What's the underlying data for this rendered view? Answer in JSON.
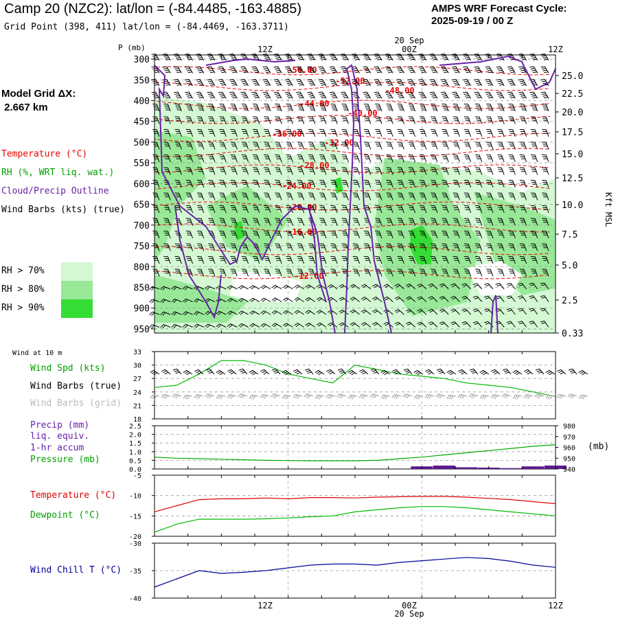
{
  "header": {
    "title": "Camp 20 (NZC2):  lat/lon = (-84.4485, -163.4885)",
    "subtitle": "Grid Point (398, 411) lat/lon = (-84.4469, -163.3711)",
    "forecast_line1": "AMPS WRF Forecast Cycle:",
    "forecast_line2": "2025-09-19 / 00  Z",
    "grid_dx_line1": "Model Grid ΔX:",
    "grid_dx_line2": " 2.667 km"
  },
  "time_axis": {
    "ticks": [
      "12Z",
      "00Z",
      "12Z"
    ],
    "date_label": "20 Sep"
  },
  "upper": {
    "p_label": "P (mb)",
    "kft_label": "Kft MSL",
    "legend_temp": "Temperature (°C)",
    "legend_rh": "RH (%, WRT liq. wat.)",
    "legend_cloud": "Cloud/Precip Outline",
    "legend_wind": "Wind Barbs (kts) (true)",
    "rh_keys": [
      "RH > 70%",
      "RH > 80%",
      "RH > 90%"
    ],
    "colors": {
      "temperature": "#ff0000",
      "rh": "#00a000",
      "cloud": "#6a1fa8",
      "rh70": "#d3f8d3",
      "rh80": "#98e898",
      "rh90": "#33dd33"
    }
  },
  "wind10": {
    "title": "Wind at 10 m",
    "legend_spd": "Wind Spd (kts)",
    "legend_true": "Wind Barbs (true)",
    "legend_grid": "Wind Barbs (grid)"
  },
  "precip": {
    "legend_precip1": "Precip (mm)",
    "legend_precip2": "liq. equiv.",
    "legend_precip3": "1-hr accum",
    "legend_pressure": "Pressure (mb)",
    "right_unit": "(mb)"
  },
  "temp": {
    "legend_temp": "Temperature (°C)",
    "legend_dew": "Dewpoint (°C)"
  },
  "chill": {
    "legend": "Wind Chill T (°C)"
  },
  "chart_data": [
    {
      "type": "heatmap",
      "panel": "upper-air cross section",
      "y_ticks_pressure": [
        "300",
        "350",
        "400",
        "450",
        "500",
        "550",
        "600",
        "650",
        "700",
        "750",
        "800",
        "850",
        "900",
        "950"
      ],
      "y_ticks_height_kft": [
        "25.0",
        "22.5",
        "20.0",
        "17.5",
        "15.0",
        "12.5",
        "10.0",
        "7.5",
        "5.0",
        "2.5",
        "0.33"
      ],
      "temperature_contour_labels": [
        "-56.00",
        "-52.00",
        "-48.00",
        "-44.00",
        "-40.00",
        "-36.00",
        "-32.00",
        "-28.00",
        "-24.00",
        "-20.00",
        "-16.00",
        "-12.00"
      ]
    },
    {
      "type": "line",
      "panel": "10 m wind speed",
      "ylim": [
        18,
        33
      ],
      "y_ticks": [
        "33",
        "30",
        "27",
        "24",
        "21",
        "18"
      ],
      "x_hours": [
        0,
        2,
        4,
        6,
        8,
        10,
        12,
        14,
        16,
        18,
        20,
        22,
        24,
        26,
        28,
        30,
        32,
        34,
        36
      ],
      "series": [
        {
          "name": "Wind Spd (kts)",
          "values": [
            25,
            25.5,
            28,
            31,
            31,
            30,
            28,
            27,
            26,
            30,
            29,
            28,
            27.5,
            27,
            26,
            25.5,
            25,
            24,
            23
          ]
        }
      ]
    },
    {
      "type": "line",
      "panel": "precipitation and pressure",
      "ylim_left": [
        0,
        2.5
      ],
      "y_ticks_left": [
        "2.5",
        "2.0",
        "1.5",
        "1.0",
        "0.5",
        "0.0"
      ],
      "ylim_right": [
        940,
        980
      ],
      "y_ticks_right": [
        "980",
        "970",
        "960",
        "950",
        "940"
      ],
      "x_hours": [
        0,
        2,
        4,
        6,
        8,
        10,
        12,
        14,
        16,
        18,
        20,
        22,
        24,
        26,
        28,
        30,
        32,
        34,
        36
      ],
      "series": [
        {
          "name": "Pressure (mb)",
          "values": [
            951,
            950,
            949.5,
            949,
            948.5,
            948,
            947.8,
            947.6,
            947.6,
            947.6,
            948,
            949.5,
            951,
            953,
            955,
            957,
            959,
            961,
            962.5
          ]
        },
        {
          "name": "Precip (mm)",
          "values": [
            0,
            0,
            0,
            0,
            0,
            0,
            0,
            0,
            0,
            0,
            0,
            0,
            0.15,
            0.2,
            0.1,
            0.08,
            0.05,
            0.15,
            0.2
          ]
        }
      ]
    },
    {
      "type": "line",
      "panel": "temperature and dewpoint",
      "ylim": [
        -20,
        -5
      ],
      "y_ticks": [
        "-5",
        "-10",
        "-15",
        "-20"
      ],
      "x_hours": [
        0,
        2,
        4,
        6,
        8,
        10,
        12,
        14,
        16,
        18,
        20,
        22,
        24,
        26,
        28,
        30,
        32,
        34,
        36
      ],
      "series": [
        {
          "name": "Temperature (°C)",
          "values": [
            -14,
            -12.5,
            -11,
            -10.8,
            -10.8,
            -10.6,
            -10.8,
            -10.5,
            -10.5,
            -10.6,
            -10.4,
            -10.3,
            -10.2,
            -10.2,
            -10.4,
            -10.7,
            -11,
            -11.5,
            -12
          ]
        },
        {
          "name": "Dewpoint (°C)",
          "values": [
            -19,
            -17,
            -15.8,
            -15.8,
            -15.8,
            -15.7,
            -15.5,
            -15.2,
            -15,
            -14,
            -13.5,
            -13,
            -12.7,
            -12.7,
            -13,
            -13.5,
            -14,
            -14.5,
            -15
          ]
        }
      ]
    },
    {
      "type": "line",
      "panel": "wind chill",
      "ylim": [
        -40,
        -30
      ],
      "y_ticks": [
        "-30",
        "-35",
        "-40"
      ],
      "x_hours": [
        0,
        2,
        4,
        6,
        8,
        10,
        12,
        14,
        16,
        18,
        20,
        22,
        24,
        26,
        28,
        30,
        32,
        34,
        36
      ],
      "series": [
        {
          "name": "Wind Chill T (°C)",
          "values": [
            -38,
            -36.5,
            -35,
            -35.5,
            -35.3,
            -35,
            -34.5,
            -34,
            -33.8,
            -33.8,
            -34,
            -33.5,
            -33.2,
            -32.9,
            -32.6,
            -32.8,
            -33.3,
            -34,
            -34.4
          ]
        }
      ]
    }
  ]
}
